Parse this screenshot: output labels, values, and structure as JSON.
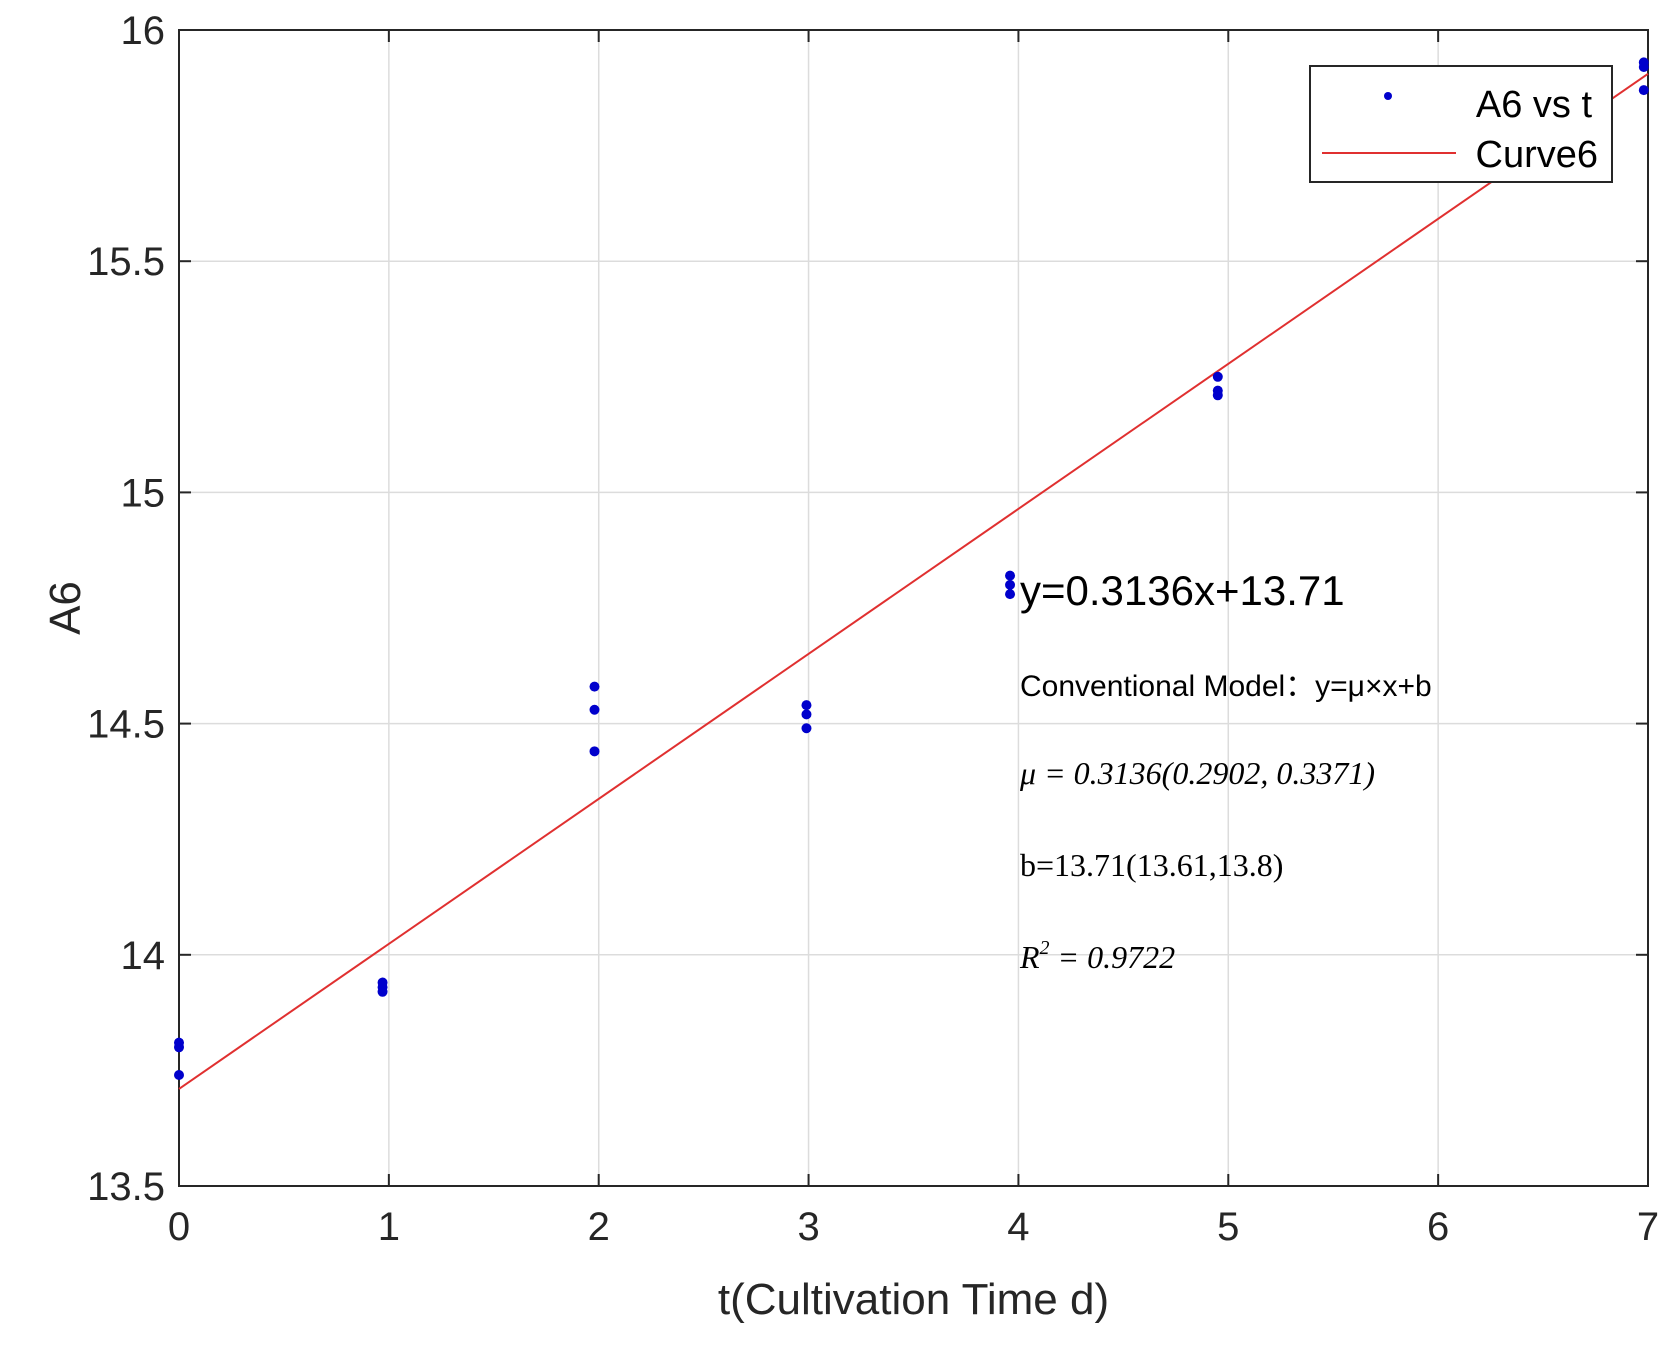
{
  "chart_data": {
    "type": "scatter",
    "xlabel": "t(Cultivation Time d)",
    "ylabel": "A6",
    "xlim": [
      0,
      7
    ],
    "ylim": [
      13.5,
      16
    ],
    "xticks": [
      "0",
      "1",
      "2",
      "3",
      "4",
      "5",
      "6",
      "7"
    ],
    "yticks": [
      "13.5",
      "14",
      "14.5",
      "15",
      "15.5",
      "16"
    ],
    "grid": true,
    "legend_position": "top-right",
    "series": [
      {
        "name": "A6 vs t",
        "kind": "points",
        "color": "#0000cc",
        "points": [
          {
            "x": 0,
            "y": 13.81
          },
          {
            "x": 0,
            "y": 13.8
          },
          {
            "x": 0,
            "y": 13.74
          },
          {
            "x": 0.97,
            "y": 13.94
          },
          {
            "x": 0.97,
            "y": 13.93
          },
          {
            "x": 0.97,
            "y": 13.92
          },
          {
            "x": 1.98,
            "y": 14.58
          },
          {
            "x": 1.98,
            "y": 14.53
          },
          {
            "x": 1.98,
            "y": 14.44
          },
          {
            "x": 2.99,
            "y": 14.54
          },
          {
            "x": 2.99,
            "y": 14.52
          },
          {
            "x": 2.99,
            "y": 14.49
          },
          {
            "x": 3.96,
            "y": 14.82
          },
          {
            "x": 3.96,
            "y": 14.8
          },
          {
            "x": 3.96,
            "y": 14.78
          },
          {
            "x": 4.95,
            "y": 15.25
          },
          {
            "x": 4.95,
            "y": 15.22
          },
          {
            "x": 4.95,
            "y": 15.21
          },
          {
            "x": 6.98,
            "y": 15.93
          },
          {
            "x": 6.98,
            "y": 15.92
          },
          {
            "x": 6.98,
            "y": 15.87
          }
        ]
      },
      {
        "name": "Curve6",
        "kind": "line",
        "color": "#e03030",
        "slope": 0.3136,
        "intercept": 13.71,
        "x_range": [
          0,
          7
        ]
      }
    ],
    "annotations": {
      "equation": "y=0.3136x+13.71",
      "model": "Conventional Model：y=μ×x+b",
      "mu_line": "μ = 0.3136(0.2902, 0.3371)",
      "b_line": "b=13.71(13.61,13.8)",
      "r2_prefix": "R",
      "r2_sup": "2",
      "r2_suffix": " = 0.9722"
    }
  }
}
